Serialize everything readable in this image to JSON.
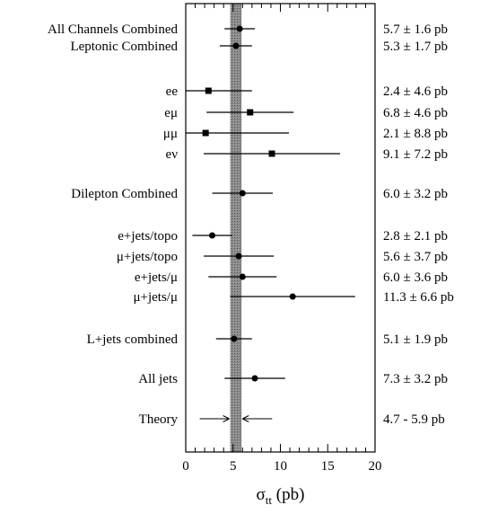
{
  "chart_data": {
    "type": "scatter",
    "title": "",
    "xlabel": "σ",
    "xlabel_sub": "tt",
    "xlabel_unit": "(pb)",
    "xlim": [
      0,
      20
    ],
    "xticks": [
      "0",
      "5",
      "10",
      "15",
      "20"
    ],
    "grid": false,
    "theory_band": [
      4.7,
      5.9
    ],
    "rows": [
      {
        "label": "All Channels Combined",
        "value": 5.7,
        "err": 1.6,
        "marker": "circle",
        "text": "5.7 ± 1.6 pb"
      },
      {
        "label": "Leptonic Combined",
        "value": 5.3,
        "err": 1.7,
        "marker": "circle",
        "text": "5.3 ± 1.7 pb"
      },
      {
        "label": "ee",
        "value": 2.4,
        "err": 4.6,
        "marker": "square",
        "text": "2.4 ± 4.6 pb"
      },
      {
        "label": "eμ",
        "value": 6.8,
        "err": 4.6,
        "marker": "square",
        "text": "6.8 ± 4.6 pb"
      },
      {
        "label": "μμ",
        "value": 2.1,
        "err": 8.8,
        "marker": "square",
        "text": "2.1 ± 8.8 pb"
      },
      {
        "label": "eν",
        "value": 9.1,
        "err": 7.2,
        "marker": "square",
        "text": "9.1 ± 7.2 pb"
      },
      {
        "label": "Dilepton Combined",
        "value": 6.0,
        "err": 3.2,
        "marker": "circle",
        "text": "6.0 ± 3.2 pb"
      },
      {
        "label": "e+jets/topo",
        "value": 2.8,
        "err": 2.1,
        "marker": "circle",
        "text": "2.8 ± 2.1 pb"
      },
      {
        "label": "μ+jets/topo",
        "value": 5.6,
        "err": 3.7,
        "marker": "circle",
        "text": "5.6 ± 3.7 pb"
      },
      {
        "label": "e+jets/μ",
        "value": 6.0,
        "err": 3.6,
        "marker": "circle",
        "text": "6.0 ± 3.6 pb"
      },
      {
        "label": "μ+jets/μ",
        "value": 11.3,
        "err": 6.6,
        "marker": "circle",
        "text": "11.3 ± 6.6 pb"
      },
      {
        "label": "L+jets combined",
        "value": 5.1,
        "err": 1.9,
        "marker": "circle",
        "text": "5.1 ± 1.9 pb"
      },
      {
        "label": "All jets",
        "value": 7.3,
        "err": 3.2,
        "marker": "circle",
        "text": "7.3 ± 3.2 pb"
      },
      {
        "label": "Theory",
        "value": null,
        "err": null,
        "marker": "arrows",
        "range": [
          4.7,
          5.9
        ],
        "text": "4.7 - 5.9 pb"
      }
    ]
  }
}
